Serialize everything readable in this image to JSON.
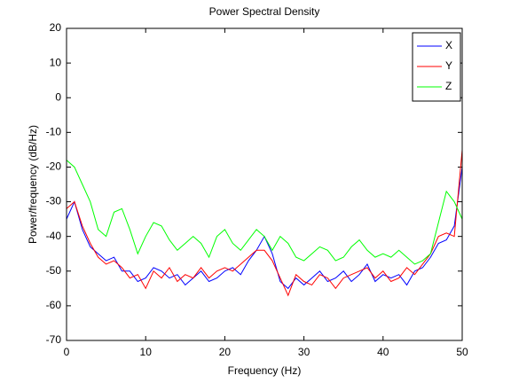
{
  "chart_data": {
    "type": "line",
    "title": "Power Spectral Density",
    "x_label": "Frequency (Hz)",
    "y_label": "Power/frequency (dB/Hz)",
    "x": [
      0,
      1,
      2,
      3,
      4,
      5,
      6,
      7,
      8,
      9,
      10,
      11,
      12,
      13,
      14,
      15,
      16,
      17,
      18,
      19,
      20,
      21,
      22,
      23,
      24,
      25,
      26,
      27,
      28,
      29,
      30,
      31,
      32,
      33,
      34,
      35,
      36,
      37,
      38,
      39,
      40,
      41,
      42,
      43,
      44,
      45,
      46,
      47,
      48,
      49,
      50
    ],
    "series": [
      {
        "name": "X",
        "color": "#0000ff",
        "values": [
          -35,
          -30,
          -38,
          -43,
          -45,
          -47,
          -46,
          -50,
          -50,
          -53,
          -52,
          -49,
          -50,
          -52,
          -51,
          -54,
          -52,
          -50,
          -53,
          -52,
          -50,
          -49,
          -51,
          -47,
          -44,
          -40,
          -45,
          -53,
          -55,
          -52,
          -54,
          -52,
          -50,
          -53,
          -52,
          -50,
          -53,
          -51,
          -48,
          -53,
          -51,
          -52,
          -51,
          -54,
          -50,
          -49,
          -46,
          -42,
          -41,
          -37,
          -20
        ]
      },
      {
        "name": "Y",
        "color": "#ff0000",
        "values": [
          -32,
          -30,
          -37,
          -42,
          -46,
          -48,
          -47,
          -49,
          -52,
          -51,
          -55,
          -50,
          -52,
          -49,
          -53,
          -51,
          -52,
          -49,
          -52,
          -50,
          -49,
          -50,
          -48,
          -46,
          -44,
          -44,
          -47,
          -52,
          -57,
          -51,
          -53,
          -54,
          -51,
          -52,
          -55,
          -52,
          -51,
          -50,
          -49,
          -52,
          -50,
          -53,
          -52,
          -49,
          -51,
          -48,
          -45,
          -40,
          -39,
          -40,
          -15
        ]
      },
      {
        "name": "Z",
        "color": "#00ff00",
        "values": [
          -18,
          -20,
          -25,
          -30,
          -38,
          -40,
          -33,
          -32,
          -38,
          -45,
          -40,
          -36,
          -37,
          -41,
          -44,
          -42,
          -40,
          -42,
          -46,
          -40,
          -38,
          -42,
          -44,
          -41,
          -38,
          -40,
          -44,
          -40,
          -42,
          -46,
          -47,
          -45,
          -43,
          -44,
          -47,
          -46,
          -43,
          -41,
          -44,
          -46,
          -45,
          -46,
          -44,
          -46,
          -48,
          -47,
          -45,
          -36,
          -27,
          -30,
          -35
        ]
      }
    ],
    "xlim": [
      0,
      50
    ],
    "xticks": [
      0,
      10,
      20,
      30,
      40,
      50
    ],
    "ylim": [
      -70,
      20
    ],
    "yticks": [
      -70,
      -60,
      -50,
      -40,
      -30,
      -20,
      -10,
      0,
      10,
      20
    ],
    "grid": false,
    "legend": "northeast"
  }
}
